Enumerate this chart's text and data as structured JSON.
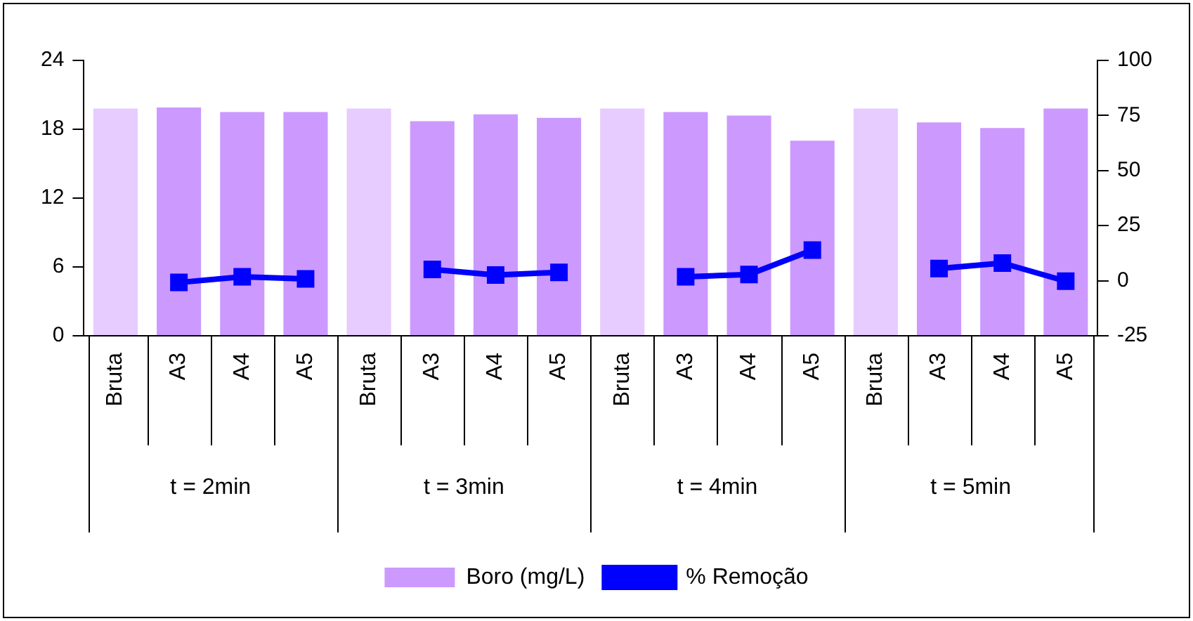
{
  "chart_data": {
    "type": "bar",
    "categories": [
      "Bruta",
      "A3",
      "A4",
      "A5",
      "Bruta",
      "A3",
      "A4",
      "A5",
      "Bruta",
      "A3",
      "A4",
      "A5",
      "Bruta",
      "A3",
      "A4",
      "A5"
    ],
    "annotations": [
      "t = 2min",
      "t = 3min",
      "t = 4min",
      "t = 5min"
    ],
    "series": [
      {
        "name": "Boro (mg/L)",
        "color": "#cc99ff",
        "colors": [
          "#e6ccff",
          "#cc99ff",
          "#cc99ff",
          "#cc99ff",
          "#e6ccff",
          "#cc99ff",
          "#cc99ff",
          "#cc99ff",
          "#e6ccff",
          "#cc99ff",
          "#cc99ff",
          "#cc99ff",
          "#e6ccff",
          "#cc99ff",
          "#cc99ff",
          "#cc99ff"
        ],
        "values": [
          19.8,
          19.9,
          19.5,
          19.5,
          19.8,
          18.7,
          19.3,
          19.0,
          19.8,
          19.5,
          19.2,
          17.0,
          19.8,
          18.6,
          18.1,
          19.8
        ]
      },
      {
        "name": "% Remoção",
        "type": "line",
        "axis": "y2",
        "color": "#0000ff",
        "marker": "square",
        "values": [
          null,
          -0.8,
          1.8,
          0.8,
          null,
          5.1,
          2.6,
          3.8,
          null,
          1.8,
          2.8,
          13.9,
          null,
          5.5,
          8.0,
          -0.2
        ]
      }
    ],
    "ylim": [
      0,
      24
    ],
    "yticks": [
      0,
      6,
      12,
      18,
      24
    ],
    "y2lim": [
      -25,
      100
    ],
    "y2ticks": [
      -25,
      0,
      25,
      50,
      75,
      100
    ],
    "grid": false,
    "legend": "bottom"
  }
}
